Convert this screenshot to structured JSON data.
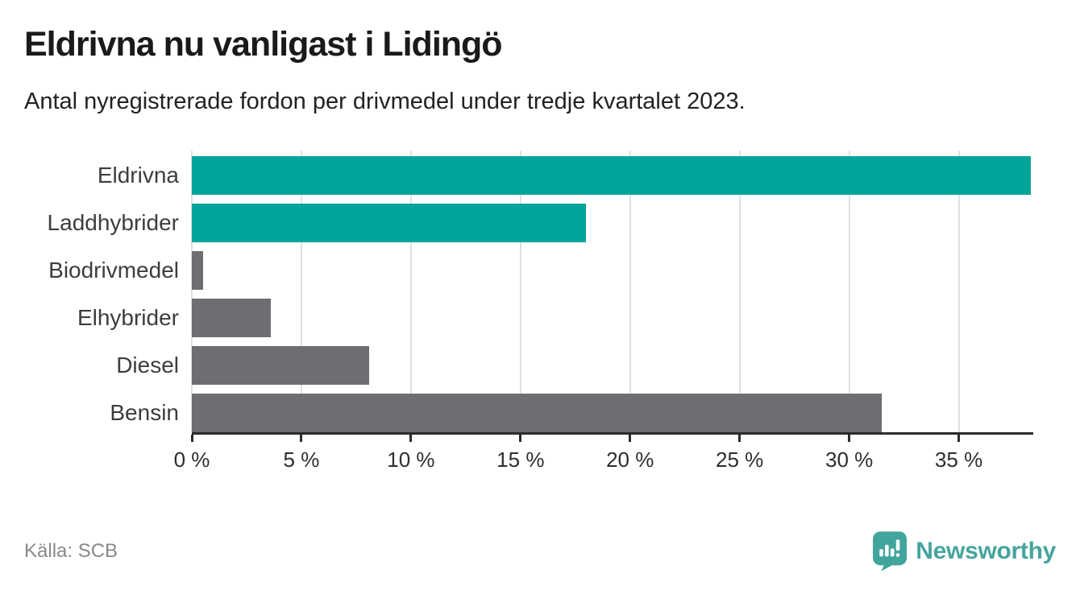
{
  "chart_data": {
    "type": "bar",
    "orientation": "horizontal",
    "title": "Eldrivna nu vanligast i Lidingö",
    "subtitle": "Antal nyregistrerade fordon per drivmedel under tredje kvartalet 2023.",
    "categories": [
      "Eldrivna",
      "Laddhybrider",
      "Biodrivmedel",
      "Elhybrider",
      "Diesel",
      "Bensin"
    ],
    "values": [
      38.3,
      18.0,
      0.5,
      3.6,
      8.1,
      31.5
    ],
    "unit": "%",
    "bar_colors": [
      "#00a49b",
      "#00a49b",
      "#6e6e72",
      "#6e6e72",
      "#6e6e72",
      "#6e6e72"
    ],
    "xlabel": "",
    "ylabel": "",
    "xlim": [
      0,
      38.4
    ],
    "x_ticks": [
      {
        "value": 0,
        "label": "0 %"
      },
      {
        "value": 5,
        "label": "5 %"
      },
      {
        "value": 10,
        "label": "10 %"
      },
      {
        "value": 15,
        "label": "15 %"
      },
      {
        "value": 20,
        "label": "20 %"
      },
      {
        "value": 25,
        "label": "25 %"
      },
      {
        "value": 30,
        "label": "30 %"
      },
      {
        "value": 35,
        "label": "35 %"
      }
    ],
    "grid": true,
    "legend": "none"
  },
  "footer": {
    "source": "Källa: SCB",
    "brand": "Newsworthy"
  },
  "colors": {
    "accent_teal": "#00a49b",
    "bar_gray": "#6e6e72",
    "brand_teal": "#46a49d",
    "gridline": "#e0e0e0",
    "axis": "#2b2b2b",
    "title_text": "#1a1a1a",
    "muted_text": "#898989"
  }
}
